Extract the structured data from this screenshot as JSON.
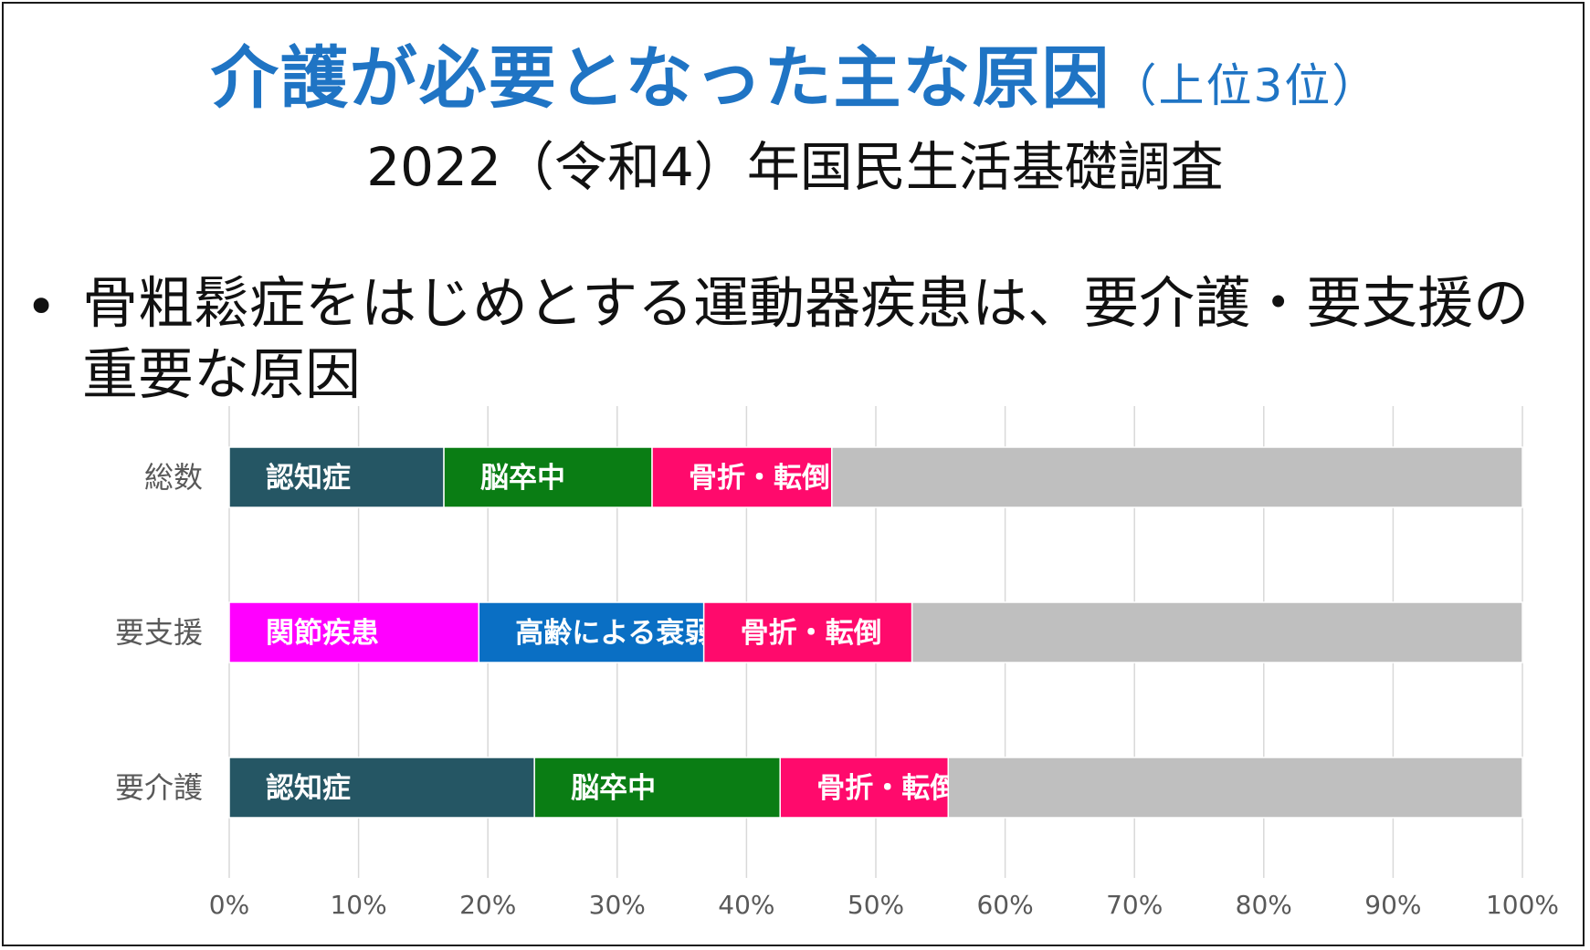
{
  "title": "介護が必要となった主な原因",
  "title_suffix": "（上位3位）",
  "subtitle": "2022（令和4）年国民生活基礎調査",
  "bullet": "骨粗鬆症をはじめとする運動器疾患は、要介護・要支援の重要な原因",
  "chart_data": {
    "type": "bar",
    "orientation": "horizontal",
    "stacked": true,
    "categories": [
      "総数",
      "要支援",
      "要介護"
    ],
    "segments": [
      [
        {
          "label": "認知症",
          "value": 16.6,
          "color": "#255664"
        },
        {
          "label": "脳卒中",
          "value": 16.1,
          "color": "#0a7d14"
        },
        {
          "label": "骨折・転倒",
          "value": 13.9,
          "color": "#ff0a6c"
        },
        {
          "label": "",
          "value": 53.4,
          "color": "#bfbfbf"
        }
      ],
      [
        {
          "label": "関節疾患",
          "value": 19.3,
          "color": "#ff00ff"
        },
        {
          "label": "高齢による衰弱",
          "value": 17.4,
          "color": "#0a6fc4"
        },
        {
          "label": "骨折・転倒",
          "value": 16.1,
          "color": "#ff0a6c"
        },
        {
          "label": "",
          "value": 47.2,
          "color": "#bfbfbf"
        }
      ],
      [
        {
          "label": "認知症",
          "value": 23.6,
          "color": "#255664"
        },
        {
          "label": "脳卒中",
          "value": 19.0,
          "color": "#0a7d14"
        },
        {
          "label": "骨折・転倒",
          "value": 13.0,
          "color": "#ff0a6c"
        },
        {
          "label": "",
          "value": 44.4,
          "color": "#bfbfbf"
        }
      ]
    ],
    "x_ticks": [
      "0%",
      "10%",
      "20%",
      "30%",
      "40%",
      "50%",
      "60%",
      "70%",
      "80%",
      "90%",
      "100%"
    ],
    "xlim": [
      0,
      100
    ],
    "grid": true,
    "legend": "none"
  }
}
